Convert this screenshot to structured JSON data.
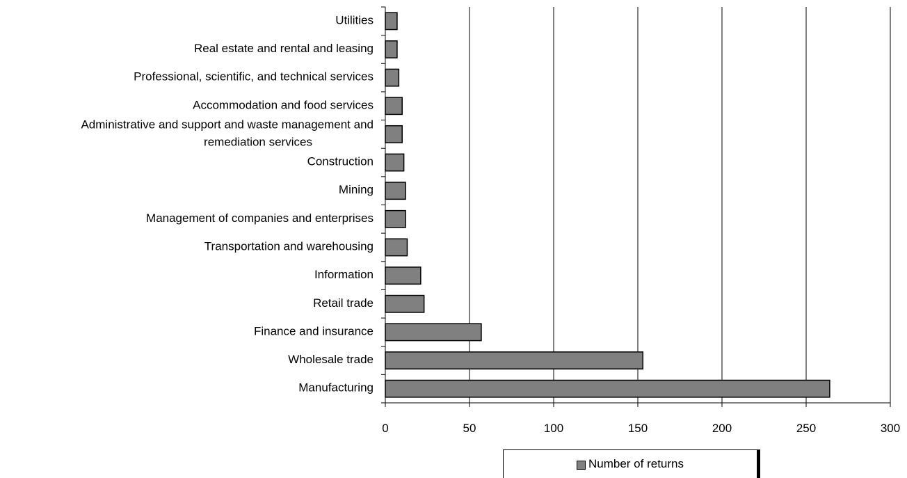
{
  "chart_data": {
    "type": "bar",
    "orientation": "horizontal",
    "categories": [
      "Utilities",
      "Real estate and rental and leasing",
      "Professional, scientific, and technical services",
      "Accommodation and food services",
      "Administrative and support and waste management and remediation services",
      "Construction",
      "Mining",
      "Management of companies and enterprises",
      "Transportation and warehousing",
      "Information",
      "Retail trade",
      "Finance and insurance",
      "Wholesale trade",
      "Manufacturing"
    ],
    "category_label_lines": [
      [
        "Utilities"
      ],
      [
        "Real estate and rental and leasing"
      ],
      [
        "Professional, scientific, and technical services"
      ],
      [
        "Accommodation and food services"
      ],
      [
        "Administrative and support and waste management and",
        "remediation services"
      ],
      [
        "Construction"
      ],
      [
        "Mining"
      ],
      [
        "Management of companies and enterprises"
      ],
      [
        "Transportation and warehousing"
      ],
      [
        "Information"
      ],
      [
        "Retail trade"
      ],
      [
        "Finance and insurance"
      ],
      [
        "Wholesale trade"
      ],
      [
        "Manufacturing"
      ]
    ],
    "series": [
      {
        "name": "Number of returns",
        "values": [
          7,
          7,
          8,
          10,
          10,
          11,
          12,
          12,
          13,
          21,
          23,
          57,
          153,
          264
        ],
        "color": "#808080"
      }
    ],
    "xlim": [
      0,
      300
    ],
    "xticks": [
      "0",
      "50",
      "100",
      "150",
      "200",
      "250",
      "300"
    ],
    "xlabel": "",
    "ylabel": "",
    "grid": "vertical",
    "legend_position": "bottom"
  }
}
